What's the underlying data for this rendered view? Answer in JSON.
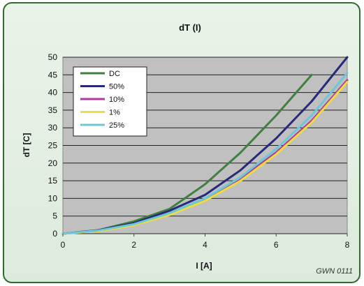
{
  "chart_data": {
    "type": "line",
    "title": "dT (I)",
    "xlabel": "I [A]",
    "ylabel": "dT [C]",
    "xlim": [
      0,
      8
    ],
    "ylim": [
      0,
      50
    ],
    "x_ticks": [
      "0",
      "2",
      "4",
      "6",
      "8"
    ],
    "y_ticks": [
      "0",
      "5",
      "10",
      "15",
      "20",
      "25",
      "30",
      "35",
      "40",
      "45",
      "50"
    ],
    "grid": "horizontal",
    "legend_position": "top-left",
    "annotation": "GWN 0111",
    "series": [
      {
        "name": "DC",
        "color": "#3f7f3f",
        "x": [
          0,
          1,
          2,
          3,
          4,
          5,
          6,
          7
        ],
        "y": [
          0,
          1,
          3.5,
          7,
          14,
          23,
          33.5,
          45
        ]
      },
      {
        "name": "50%",
        "color": "#262a7a",
        "x": [
          0,
          1,
          2,
          3,
          4,
          5,
          6,
          7,
          8
        ],
        "y": [
          0,
          1,
          3,
          6.5,
          11,
          18,
          27,
          37.5,
          50
        ]
      },
      {
        "name": "10%",
        "color": "#b0389a",
        "x": [
          0,
          1,
          2,
          3,
          4,
          5,
          6,
          7,
          8
        ],
        "y": [
          0,
          0.8,
          2.5,
          5.5,
          9.5,
          15.5,
          23,
          32,
          43.5
        ]
      },
      {
        "name": "1%",
        "color": "#f0dc3c",
        "x": [
          0,
          1,
          2,
          3,
          4,
          5,
          6,
          7,
          8
        ],
        "y": [
          0,
          0.7,
          2.4,
          5.3,
          9.3,
          15,
          22.5,
          31.5,
          43
        ]
      },
      {
        "name": "25%",
        "color": "#6cc8d8",
        "x": [
          0,
          1,
          2,
          3,
          4,
          5,
          6,
          7,
          8
        ],
        "y": [
          0,
          0.9,
          2.7,
          5.8,
          10,
          16,
          24,
          33.5,
          45.5
        ]
      }
    ]
  },
  "colors": {
    "outer_background": "#e4f0e4",
    "outer_border": "#2e6b2e",
    "plot_background": "#c0c0c0",
    "gridline": "#222222"
  }
}
